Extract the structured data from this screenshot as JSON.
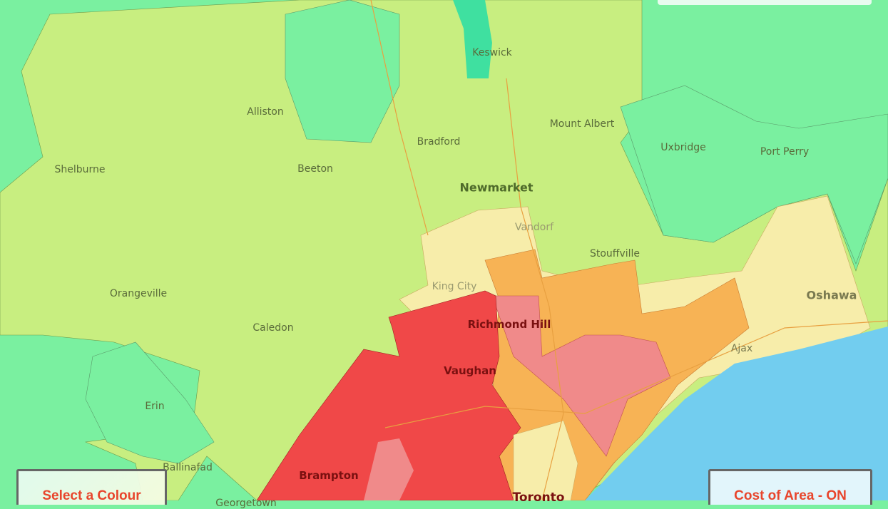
{
  "map": {
    "colors": {
      "low": "#7af0a0",
      "low_mid": "#c8ee80",
      "mid": "#f7edaa",
      "mid_high": "#f7b355",
      "high": "#f08a8a",
      "highest": "#f04848",
      "water": "#72cdef"
    },
    "places": [
      "Keswick",
      "Alliston",
      "Bradford",
      "Mount Albert",
      "Uxbridge",
      "Port Perry",
      "Shelburne",
      "Beeton",
      "Newmarket",
      "Vandorf",
      "Stouffville",
      "King City",
      "Orangeville",
      "Caledon",
      "Richmond Hill",
      "Oshawa",
      "Ajax",
      "Vaughan",
      "Erin",
      "Ballinafad",
      "Brampton",
      "Toronto",
      "Georgetown"
    ]
  },
  "controls": {
    "colour_button": "Select a Colour",
    "cost_toggle": "Cost of Area - ON"
  }
}
